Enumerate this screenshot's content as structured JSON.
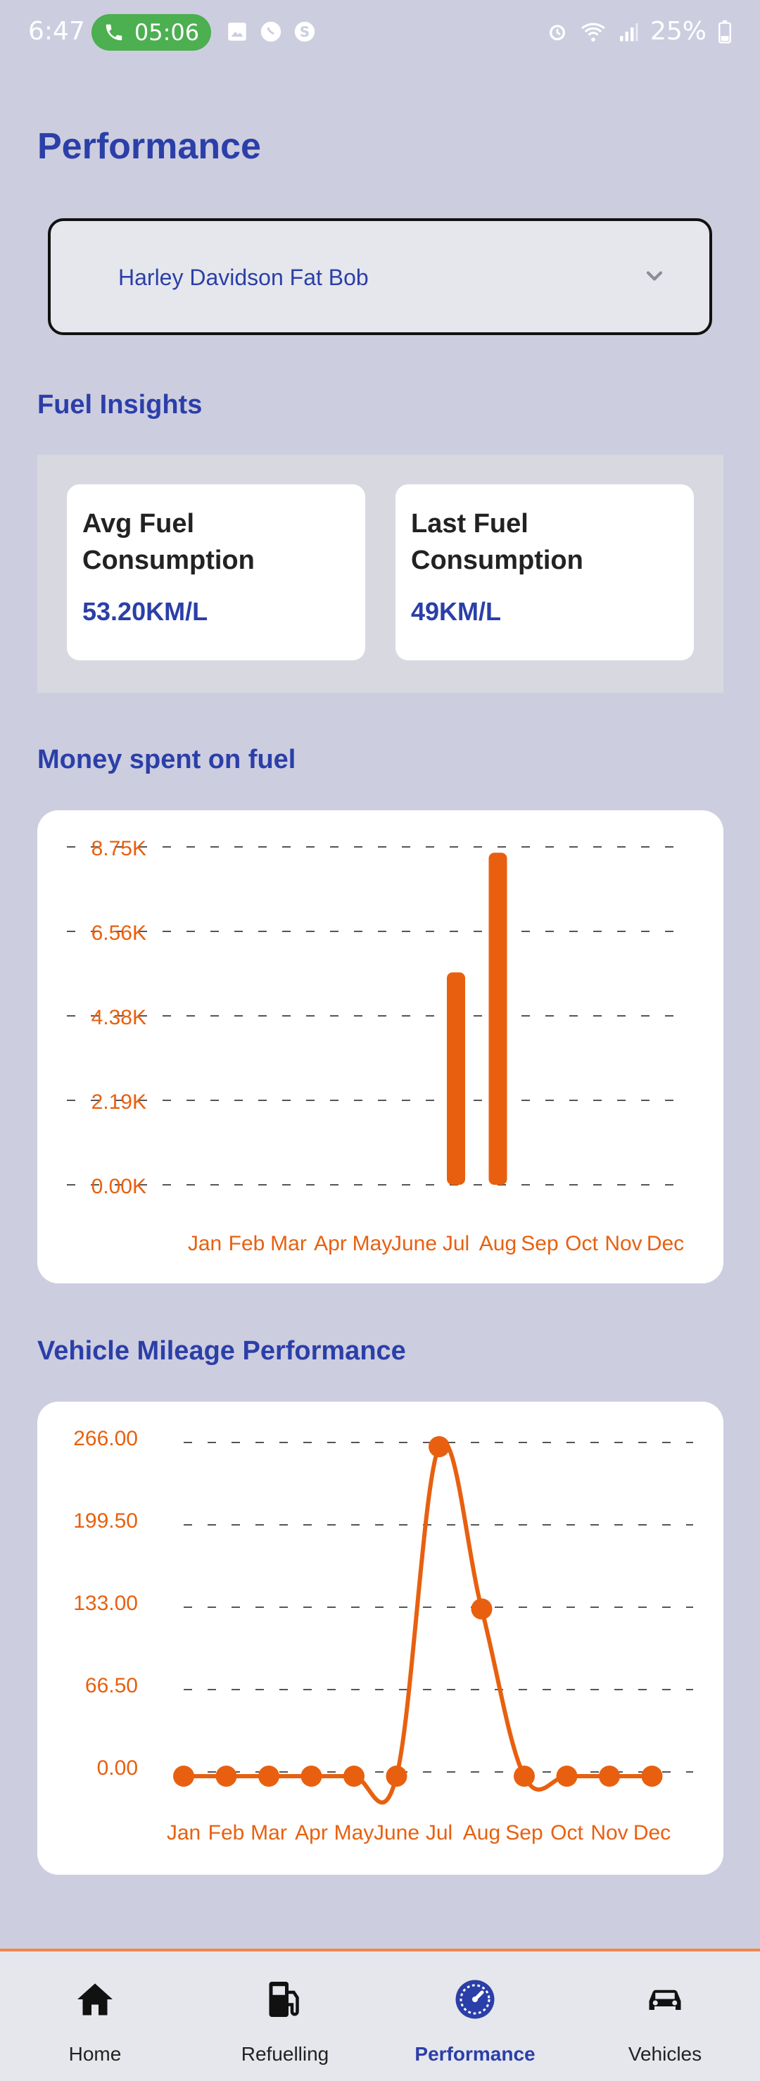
{
  "status_bar": {
    "time": "6:47",
    "call_timer": "05:06",
    "battery": "25%",
    "icons": [
      "gallery-icon",
      "whatsapp-icon",
      "skype-icon",
      "alarm-icon",
      "wifi-icon",
      "signal-icon",
      "battery-icon"
    ]
  },
  "page": {
    "title": "Performance"
  },
  "vehicle_select": {
    "value": "Harley Davidson Fat Bob"
  },
  "fuel_insights": {
    "title": "Fuel Insights",
    "avg": {
      "label": "Avg Fuel Consumption",
      "value": "53.20KM/L"
    },
    "last": {
      "label": "Last Fuel Consumption",
      "value": "49KM/L"
    }
  },
  "money_chart": {
    "title": "Money spent on fuel"
  },
  "mileage_chart": {
    "title": "Vehicle Mileage Performance"
  },
  "nav": {
    "items": [
      {
        "label": "Home",
        "icon": "home-icon"
      },
      {
        "label": "Refuelling",
        "icon": "fuel-pump-icon"
      },
      {
        "label": "Performance",
        "icon": "speedometer-icon"
      },
      {
        "label": "Vehicles",
        "icon": "car-icon"
      }
    ],
    "active": 2
  },
  "colors": {
    "accent": "#2b3fa8",
    "chart": "#e8600f",
    "background": "#cdcde0"
  },
  "chart_data": [
    {
      "type": "bar",
      "title": "Money spent on fuel",
      "categories": [
        "Jan",
        "Feb",
        "Mar",
        "Apr",
        "May",
        "June",
        "Jul",
        "Aug",
        "Sep",
        "Oct",
        "Nov",
        "Dec"
      ],
      "values": [
        0,
        0,
        0,
        0,
        0,
        0,
        5500,
        8600,
        0,
        0,
        0,
        0
      ],
      "y_ticks": [
        "0.00K",
        "2.19K",
        "4.38K",
        "6.56K",
        "8.75K"
      ],
      "ylim": [
        0,
        8750
      ],
      "grid": true
    },
    {
      "type": "line",
      "title": "Vehicle Mileage Performance",
      "categories": [
        "Jan",
        "Feb",
        "Mar",
        "Apr",
        "May",
        "June",
        "Jul",
        "Aug",
        "Sep",
        "Oct",
        "Nov",
        "Dec"
      ],
      "values": [
        0,
        0,
        0,
        0,
        0,
        0,
        266,
        135,
        0,
        0,
        0,
        0
      ],
      "y_ticks": [
        "0.00",
        "66.50",
        "133.00",
        "199.50",
        "266.00"
      ],
      "ylim": [
        0,
        266
      ],
      "grid": true
    }
  ]
}
